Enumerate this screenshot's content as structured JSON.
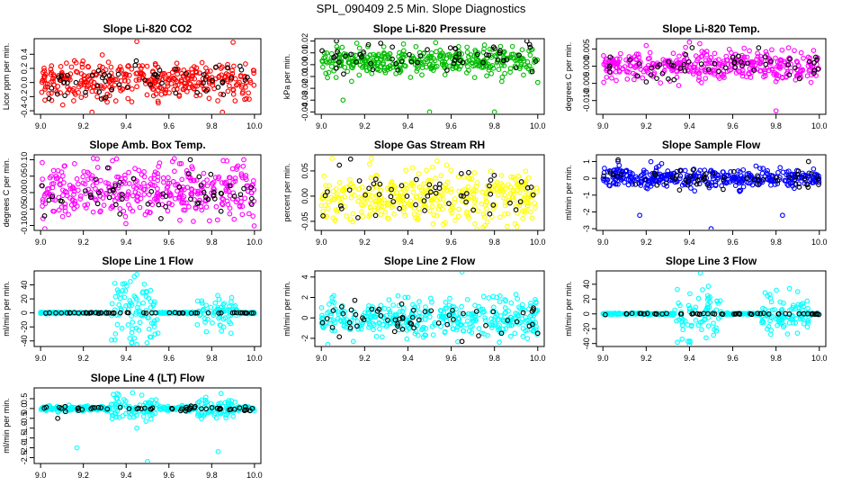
{
  "figure": {
    "title": "SPL_090409  2.5 Min. Slope Diagnostics"
  },
  "chart_data": [
    {
      "id": "p1",
      "type": "scatter",
      "title": "Slope Li-820 CO2",
      "ylabel": "Licor ppm per min.",
      "xlim": [
        8.97,
        10.03
      ],
      "ylim": [
        -0.45,
        0.62
      ],
      "xticks": [
        9.0,
        9.2,
        9.4,
        9.6,
        9.8,
        10.0
      ],
      "yticks": [
        -0.4,
        -0.2,
        0.0,
        0.2,
        0.4
      ],
      "ytick_labels": [
        "-0.4",
        "-0.2",
        "0.0",
        "0.2",
        "0.4"
      ],
      "series": [
        {
          "name": "all",
          "color": "#ff0000",
          "n": 380,
          "center": 0.03,
          "spread": 0.14,
          "outliers": [
            [
              9.45,
              0.58
            ],
            [
              9.9,
              0.57
            ],
            [
              9.24,
              -0.42
            ],
            [
              9.85,
              -0.42
            ]
          ]
        },
        {
          "name": "highlight",
          "color": "#000000",
          "n": 55,
          "center": 0.03,
          "spread": 0.12,
          "outliers": []
        }
      ]
    },
    {
      "id": "p2",
      "type": "scatter",
      "title": "Slope Li-820 Pressure",
      "ylabel": "kPa per min.",
      "xlim": [
        8.97,
        10.03
      ],
      "ylim": [
        -0.042,
        0.022
      ],
      "xticks": [
        9.0,
        9.2,
        9.4,
        9.6,
        9.8,
        10.0
      ],
      "yticks": [
        -0.04,
        -0.03,
        -0.02,
        -0.01,
        0.0,
        0.01,
        0.02
      ],
      "ytick_labels": [
        "-0.04",
        "-0.03",
        "-0.02",
        "-0.01",
        "0.00",
        "0.01",
        "0.02"
      ],
      "series": [
        {
          "name": "all",
          "color": "#00bb00",
          "n": 380,
          "center": 0.003,
          "spread": 0.006,
          "outliers": [
            [
              9.1,
              -0.03
            ],
            [
              9.5,
              -0.04
            ],
            [
              9.8,
              -0.04
            ],
            [
              10.0,
              -0.015
            ]
          ]
        },
        {
          "name": "highlight",
          "color": "#000000",
          "n": 55,
          "center": 0.006,
          "spread": 0.006,
          "outliers": [
            [
              9.07,
              0.02
            ],
            [
              9.95,
              0.02
            ]
          ]
        }
      ]
    },
    {
      "id": "p3",
      "type": "scatter",
      "title": "Slope Li-820 Temp.",
      "ylabel": "degrees C per min.",
      "xlim": [
        8.97,
        10.03
      ],
      "ylim": [
        -0.014,
        0.008
      ],
      "xticks": [
        9.0,
        9.2,
        9.4,
        9.6,
        9.8,
        10.0
      ],
      "yticks": [
        -0.01,
        -0.005,
        0.0,
        0.005
      ],
      "ytick_labels": [
        "-0.010",
        "-0.005",
        "0.000",
        "0.005"
      ],
      "series": [
        {
          "name": "all",
          "color": "#ff00ff",
          "n": 380,
          "center": 0.0,
          "spread": 0.0022,
          "outliers": [
            [
              9.4,
              0.007
            ],
            [
              9.8,
              -0.013
            ],
            [
              9.2,
              0.006
            ]
          ]
        },
        {
          "name": "highlight",
          "color": "#000000",
          "n": 55,
          "center": 0.0,
          "spread": 0.002,
          "outliers": []
        }
      ]
    },
    {
      "id": "p4",
      "type": "scatter",
      "title": "Slope Amb. Box Temp.",
      "ylabel": "degrees C per min.",
      "xlim": [
        8.97,
        10.03
      ],
      "ylim": [
        -0.115,
        0.115
      ],
      "xticks": [
        9.0,
        9.2,
        9.4,
        9.6,
        9.8,
        10.0
      ],
      "yticks": [
        -0.1,
        -0.05,
        0.0,
        0.05,
        0.1
      ],
      "ytick_labels": [
        "-0.10",
        "-0.05",
        "0.00",
        "0.05",
        "0.10"
      ],
      "series": [
        {
          "name": "all",
          "color": "#ff00ff",
          "n": 380,
          "center": 0.005,
          "spread": 0.04,
          "outliers": [
            [
              9.02,
              -0.11
            ],
            [
              9.95,
              0.1
            ]
          ]
        },
        {
          "name": "highlight",
          "color": "#000000",
          "n": 55,
          "center": 0.0,
          "spread": 0.035,
          "outliers": [
            [
              9.7,
              0.1
            ]
          ]
        }
      ]
    },
    {
      "id": "p5",
      "type": "scatter",
      "title": "Slope Gas Stream RH",
      "ylabel": "percent per min.",
      "xlim": [
        8.97,
        10.03
      ],
      "ylim": [
        -0.068,
        0.082
      ],
      "xticks": [
        9.0,
        9.2,
        9.4,
        9.6,
        9.8,
        10.0
      ],
      "yticks": [
        -0.05,
        0.0,
        0.05
      ],
      "ytick_labels": [
        "-0.05",
        "0.00",
        "0.05"
      ],
      "series": [
        {
          "name": "all",
          "color": "#ffff00",
          "n": 380,
          "center": 0.0,
          "spread": 0.025,
          "outliers": [
            [
              9.05,
              0.075
            ],
            [
              9.72,
              -0.066
            ]
          ]
        },
        {
          "name": "highlight",
          "color": "#000000",
          "n": 55,
          "center": 0.0,
          "spread": 0.025,
          "outliers": []
        }
      ]
    },
    {
      "id": "p6",
      "type": "scatter",
      "title": "Slope Sample Flow",
      "ylabel": "ml/min per min.",
      "xlim": [
        8.97,
        10.03
      ],
      "ylim": [
        -3.1,
        1.4
      ],
      "xticks": [
        9.0,
        9.2,
        9.4,
        9.6,
        9.8,
        10.0
      ],
      "yticks": [
        -3,
        -2,
        -1,
        0,
        1
      ],
      "ytick_labels": [
        "-3",
        "-2",
        "-1",
        "0",
        "1"
      ],
      "series": [
        {
          "name": "all",
          "color": "#0000ff",
          "n": 380,
          "center": 0.0,
          "spread": 0.28,
          "outliers": [
            [
              9.17,
              -2.2
            ],
            [
              9.5,
              -3.0
            ],
            [
              9.83,
              -2.2
            ],
            [
              9.07,
              1.0
            ]
          ]
        },
        {
          "name": "highlight",
          "color": "#000000",
          "n": 55,
          "center": 0.0,
          "spread": 0.3,
          "outliers": [
            [
              9.07,
              1.1
            ],
            [
              9.95,
              1.0
            ]
          ]
        }
      ]
    },
    {
      "id": "p7",
      "type": "scatter",
      "title": "Slope Line 1 Flow",
      "ylabel": "ml/min per min.",
      "xlim": [
        8.97,
        10.03
      ],
      "ylim": [
        -48,
        60
      ],
      "xticks": [
        9.0,
        9.2,
        9.4,
        9.6,
        9.8,
        10.0
      ],
      "yticks": [
        -40,
        -20,
        0,
        20,
        40
      ],
      "ytick_labels": [
        "-40",
        "-20",
        "0",
        "20",
        "40"
      ],
      "series": [
        {
          "name": "all",
          "color": "#00ffff",
          "n": 380,
          "center": 0.0,
          "spread": 0.6,
          "burst": [
            [
              9.33,
              9.55,
              22
            ],
            [
              9.73,
              9.92,
              14
            ]
          ],
          "outliers": [
            [
              9.45,
              55
            ],
            [
              9.45,
              -45
            ],
            [
              9.35,
              -30
            ]
          ]
        },
        {
          "name": "highlight",
          "color": "#000000",
          "n": 55,
          "center": 0.0,
          "spread": 0.3,
          "outliers": []
        }
      ]
    },
    {
      "id": "p8",
      "type": "scatter",
      "title": "Slope Line 2 Flow",
      "ylabel": "ml/min per min.",
      "xlim": [
        8.97,
        10.03
      ],
      "ylim": [
        -2.8,
        4.6
      ],
      "xticks": [
        9.0,
        9.2,
        9.4,
        9.6,
        9.8,
        10.0
      ],
      "yticks": [
        -2,
        0,
        2,
        4
      ],
      "ytick_labels": [
        "-2",
        "0",
        "2",
        "4"
      ],
      "series": [
        {
          "name": "all",
          "color": "#00ffff",
          "n": 380,
          "center": 0.0,
          "spread": 0.9,
          "outliers": [
            [
              9.65,
              4.5
            ],
            [
              9.03,
              -2.6
            ],
            [
              9.05,
              1.6
            ]
          ]
        },
        {
          "name": "highlight",
          "color": "#000000",
          "n": 55,
          "center": 0.0,
          "spread": 0.9,
          "outliers": [
            [
              9.65,
              -2.3
            ],
            [
              9.98,
              0.8
            ],
            [
              10.0,
              -1.5
            ]
          ]
        }
      ]
    },
    {
      "id": "p9",
      "type": "scatter",
      "title": "Slope Line 3 Flow",
      "ylabel": "ml/min per min.",
      "xlim": [
        8.97,
        10.03
      ],
      "ylim": [
        -44,
        58
      ],
      "xticks": [
        9.0,
        9.2,
        9.4,
        9.6,
        9.8,
        10.0
      ],
      "yticks": [
        -40,
        -20,
        0,
        20,
        40
      ],
      "ytick_labels": [
        "-40",
        "-20",
        "0",
        "20",
        "40"
      ],
      "series": [
        {
          "name": "all",
          "color": "#00ffff",
          "n": 380,
          "center": 0.0,
          "spread": 0.6,
          "burst": [
            [
              9.33,
              9.55,
              20
            ],
            [
              9.73,
              9.95,
              12
            ]
          ],
          "outliers": [
            [
              9.45,
              55
            ],
            [
              9.4,
              -42
            ],
            [
              9.9,
              30
            ]
          ]
        },
        {
          "name": "highlight",
          "color": "#000000",
          "n": 55,
          "center": 0.0,
          "spread": 0.4,
          "outliers": []
        }
      ]
    },
    {
      "id": "p10",
      "type": "scatter",
      "title": "Slope Line 4 (LT) Flow",
      "ylabel": "ml/min per min.",
      "xlim": [
        8.97,
        10.03
      ],
      "ylim": [
        -2.8,
        1.05
      ],
      "xticks": [
        9.0,
        9.2,
        9.4,
        9.6,
        9.8,
        10.0
      ],
      "yticks": [
        -2.5,
        -2.0,
        -1.5,
        -1.0,
        -0.5,
        0.0,
        0.5
      ],
      "ytick_labels": [
        "-2.5",
        "-2.0",
        "-1.5",
        "-1.0",
        "-0.5",
        "0.0",
        "0.5"
      ],
      "series": [
        {
          "name": "all",
          "color": "#00ffff",
          "n": 380,
          "center": 0.0,
          "spread": 0.06,
          "burst": [
            [
              9.33,
              9.55,
              0.3
            ],
            [
              9.73,
              9.92,
              0.25
            ]
          ],
          "outliers": [
            [
              9.17,
              -2.0
            ],
            [
              9.5,
              -2.7
            ],
            [
              9.83,
              -2.2
            ],
            [
              9.43,
              0.8
            ],
            [
              9.45,
              -1.0
            ]
          ]
        },
        {
          "name": "highlight",
          "color": "#000000",
          "n": 55,
          "center": 0.0,
          "spread": 0.05,
          "outliers": [
            [
              9.08,
              -0.5
            ]
          ]
        }
      ]
    }
  ]
}
